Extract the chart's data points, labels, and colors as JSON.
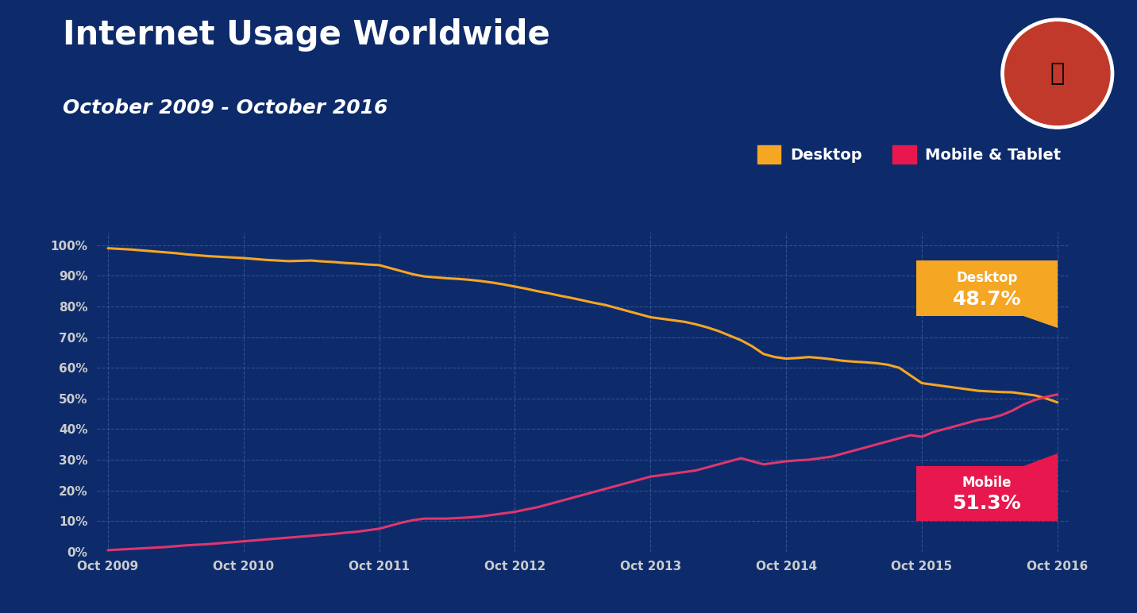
{
  "title": "Internet Usage Worldwide",
  "subtitle": "October 2009 - October 2016",
  "background_color": "#0d2b6b",
  "plot_bg_color": "#0d2b6b",
  "grid_color": "#3a5a9a",
  "title_color": "#ffffff",
  "subtitle_color": "#ffffff",
  "tick_color": "#cccccc",
  "desktop_color": "#f5a623",
  "mobile_color": "#e0356e",
  "desktop_label_bg": "#f5a623",
  "mobile_label_bg": "#e8184e",
  "legend_desktop_color": "#f5a623",
  "legend_mobile_color": "#e8184e",
  "rocket_bg": "#c0392b",
  "x_labels": [
    "Oct 2009",
    "Oct 2010",
    "Oct 2011",
    "Oct 2012",
    "Oct 2013",
    "Oct 2014",
    "Oct 2015",
    "Oct 2016"
  ],
  "x_positions": [
    0,
    12,
    24,
    36,
    48,
    60,
    72,
    84
  ],
  "y_ticks": [
    0,
    10,
    20,
    30,
    40,
    50,
    60,
    70,
    80,
    90,
    100
  ],
  "y_tick_labels": [
    "0%",
    "10%",
    "20%",
    "30%",
    "40%",
    "50%",
    "60%",
    "70%",
    "80%",
    "90%",
    "100%"
  ],
  "desktop_x": [
    0,
    1,
    2,
    3,
    4,
    5,
    6,
    7,
    8,
    9,
    10,
    11,
    12,
    13,
    14,
    15,
    16,
    17,
    18,
    19,
    20,
    21,
    22,
    23,
    24,
    25,
    26,
    27,
    28,
    29,
    30,
    31,
    32,
    33,
    34,
    35,
    36,
    37,
    38,
    39,
    40,
    41,
    42,
    43,
    44,
    45,
    46,
    47,
    48,
    49,
    50,
    51,
    52,
    53,
    54,
    55,
    56,
    57,
    58,
    59,
    60,
    61,
    62,
    63,
    64,
    65,
    66,
    67,
    68,
    69,
    70,
    71,
    72,
    73,
    74,
    75,
    76,
    77,
    78,
    79,
    80,
    81,
    82,
    83,
    84
  ],
  "desktop_y": [
    99.0,
    98.8,
    98.6,
    98.3,
    98.0,
    97.7,
    97.4,
    97.0,
    96.7,
    96.4,
    96.2,
    96.0,
    95.8,
    95.5,
    95.2,
    95.0,
    94.8,
    94.9,
    95.0,
    94.7,
    94.5,
    94.2,
    94.0,
    93.7,
    93.5,
    92.5,
    91.5,
    90.5,
    89.8,
    89.5,
    89.2,
    89.0,
    88.7,
    88.3,
    87.8,
    87.2,
    86.5,
    85.8,
    85.0,
    84.3,
    83.5,
    82.8,
    82.0,
    81.2,
    80.5,
    79.5,
    78.5,
    77.5,
    76.5,
    76.0,
    75.5,
    75.0,
    74.2,
    73.2,
    72.0,
    70.5,
    69.0,
    67.0,
    64.5,
    63.5,
    63.0,
    63.2,
    63.5,
    63.2,
    62.8,
    62.3,
    62.0,
    61.8,
    61.5,
    61.0,
    60.0,
    57.5,
    55.0,
    54.5,
    54.0,
    53.5,
    53.0,
    52.5,
    52.3,
    52.1,
    52.0,
    51.5,
    51.0,
    50.0,
    48.7
  ],
  "mobile_x": [
    0,
    1,
    2,
    3,
    4,
    5,
    6,
    7,
    8,
    9,
    10,
    11,
    12,
    13,
    14,
    15,
    16,
    17,
    18,
    19,
    20,
    21,
    22,
    23,
    24,
    25,
    26,
    27,
    28,
    29,
    30,
    31,
    32,
    33,
    34,
    35,
    36,
    37,
    38,
    39,
    40,
    41,
    42,
    43,
    44,
    45,
    46,
    47,
    48,
    49,
    50,
    51,
    52,
    53,
    54,
    55,
    56,
    57,
    58,
    59,
    60,
    61,
    62,
    63,
    64,
    65,
    66,
    67,
    68,
    69,
    70,
    71,
    72,
    73,
    74,
    75,
    76,
    77,
    78,
    79,
    80,
    81,
    82,
    83,
    84
  ],
  "mobile_y": [
    0.5,
    0.7,
    0.9,
    1.1,
    1.3,
    1.5,
    1.8,
    2.1,
    2.3,
    2.5,
    2.8,
    3.1,
    3.4,
    3.7,
    4.0,
    4.3,
    4.6,
    4.9,
    5.2,
    5.5,
    5.8,
    6.2,
    6.5,
    7.0,
    7.5,
    8.5,
    9.5,
    10.3,
    10.8,
    10.8,
    10.8,
    11.0,
    11.2,
    11.5,
    12.0,
    12.5,
    13.0,
    13.8,
    14.5,
    15.5,
    16.5,
    17.5,
    18.5,
    19.5,
    20.5,
    21.5,
    22.5,
    23.5,
    24.5,
    25.0,
    25.5,
    26.0,
    26.5,
    27.5,
    28.5,
    29.5,
    30.5,
    29.5,
    28.5,
    29.0,
    29.5,
    29.8,
    30.0,
    30.5,
    31.0,
    32.0,
    33.0,
    34.0,
    35.0,
    36.0,
    37.0,
    38.0,
    37.5,
    39.0,
    40.0,
    41.0,
    42.0,
    43.0,
    43.5,
    44.5,
    46.0,
    48.0,
    49.5,
    50.5,
    51.3
  ],
  "ylim": [
    0,
    104
  ],
  "xlim": [
    -1,
    85
  ]
}
